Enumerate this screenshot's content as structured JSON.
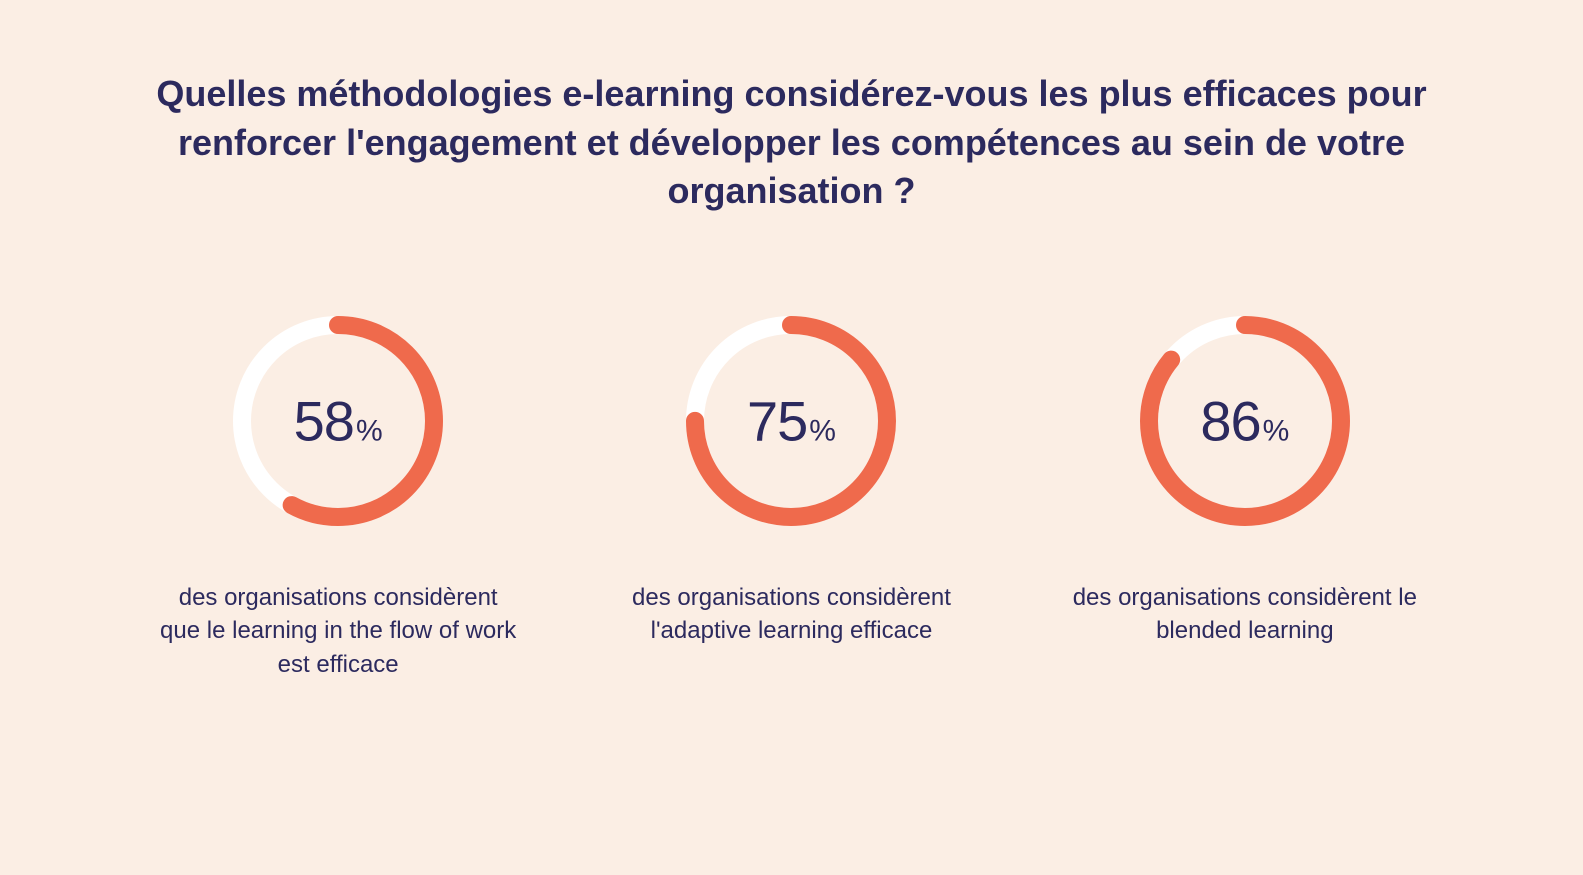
{
  "background_color": "#fbeee4",
  "title": {
    "text": "Quelles méthodologies e-learning considérez-vous les plus efficaces pour renforcer l'engagement et développer les compétences au sein de votre organisation ?",
    "color": "#2c2a5e",
    "fontsize": 36
  },
  "ring": {
    "diameter": 210,
    "stroke_width": 18,
    "track_color": "#ffffff",
    "progress_color": "#ef6a4c",
    "start_angle_deg": -90
  },
  "value_label": {
    "number_fontsize": 56,
    "pct_fontsize": 30,
    "color": "#2c2a5e",
    "pct_symbol": "%"
  },
  "caption_style": {
    "color": "#2c2a5e",
    "fontsize": 24
  },
  "metrics": [
    {
      "value": 58,
      "caption": "des organisations considèrent que le learning in the flow of work est efficace"
    },
    {
      "value": 75,
      "caption": "des organisations considèrent l'adaptive learning efficace"
    },
    {
      "value": 86,
      "caption": "des organisations considèrent le blended learning"
    }
  ]
}
